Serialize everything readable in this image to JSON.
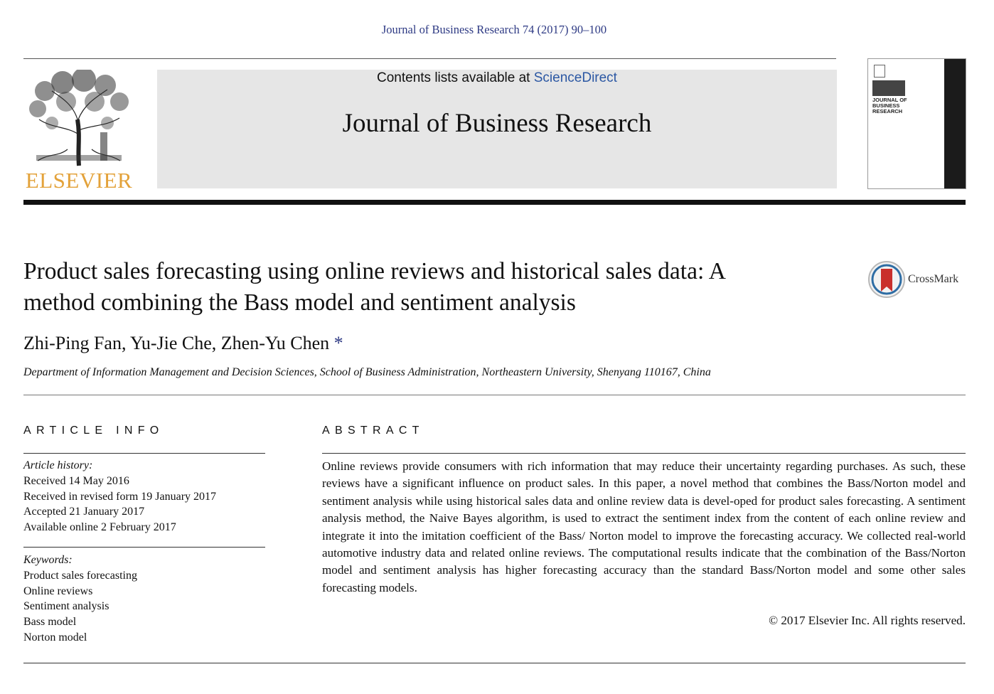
{
  "header": {
    "citation": "Journal of Business Research 74 (2017) 90–100",
    "publisher_logo_text": "ELSEVIER",
    "contents_prefix": "Contents lists available at ",
    "contents_link": "ScienceDirect",
    "journal_name": "Journal of Business Research",
    "cover_title_lines": [
      "JOURNAL OF",
      "BUSINESS",
      "RESEARCH"
    ]
  },
  "article": {
    "title_line1": "Product sales forecasting using online reviews and historical sales data: A",
    "title_line2": "method combining the Bass model and sentiment analysis",
    "crossmark_label": "CrossMark",
    "authors": "Zhi-Ping Fan, Yu-Jie Che, Zhen-Yu Chen",
    "corresponding_mark": "*",
    "affiliation": "Department of Information Management and Decision Sciences, School of Business Administration, Northeastern University, Shenyang 110167, China"
  },
  "article_info": {
    "heading": "ARTICLE INFO",
    "history_label": "Article history:",
    "history": [
      "Received 14 May 2016",
      "Received in revised form 19 January 2017",
      "Accepted 21 January 2017",
      "Available online 2 February 2017"
    ],
    "keywords_label": "Keywords:",
    "keywords": [
      "Product sales forecasting",
      "Online reviews",
      "Sentiment analysis",
      "Bass model",
      "Norton model"
    ]
  },
  "abstract": {
    "heading": "ABSTRACT",
    "text": "Online reviews provide consumers with rich information that may reduce their uncertainty regarding purchases. As such, these reviews have a significant influence on product sales. In this paper, a novel method that combines the Bass/Norton model and sentiment analysis while using historical sales data and online review data is devel-oped for product sales forecasting. A sentiment analysis method, the Naive Bayes algorithm, is used to extract the sentiment index from the content of each online review and integrate it into the imitation coefficient of the Bass/ Norton model to improve the forecasting accuracy. We collected real-world automotive industry data and related online reviews. The computational results indicate that the combination of the Bass/Norton model and sentiment analysis has higher forecasting accuracy than the standard Bass/Norton model and some other sales forecasting models.",
    "copyright": "© 2017 Elsevier Inc. All rights reserved."
  },
  "colors": {
    "link_blue": "#2e3a84",
    "sciencedirect_blue": "#2b57a3",
    "elsevier_orange": "#e3a23a",
    "banner_gray": "#e6e6e6"
  },
  "icons": [
    "elsevier-tree-logo",
    "crossmark-icon",
    "journal-cover-thumbnail"
  ]
}
